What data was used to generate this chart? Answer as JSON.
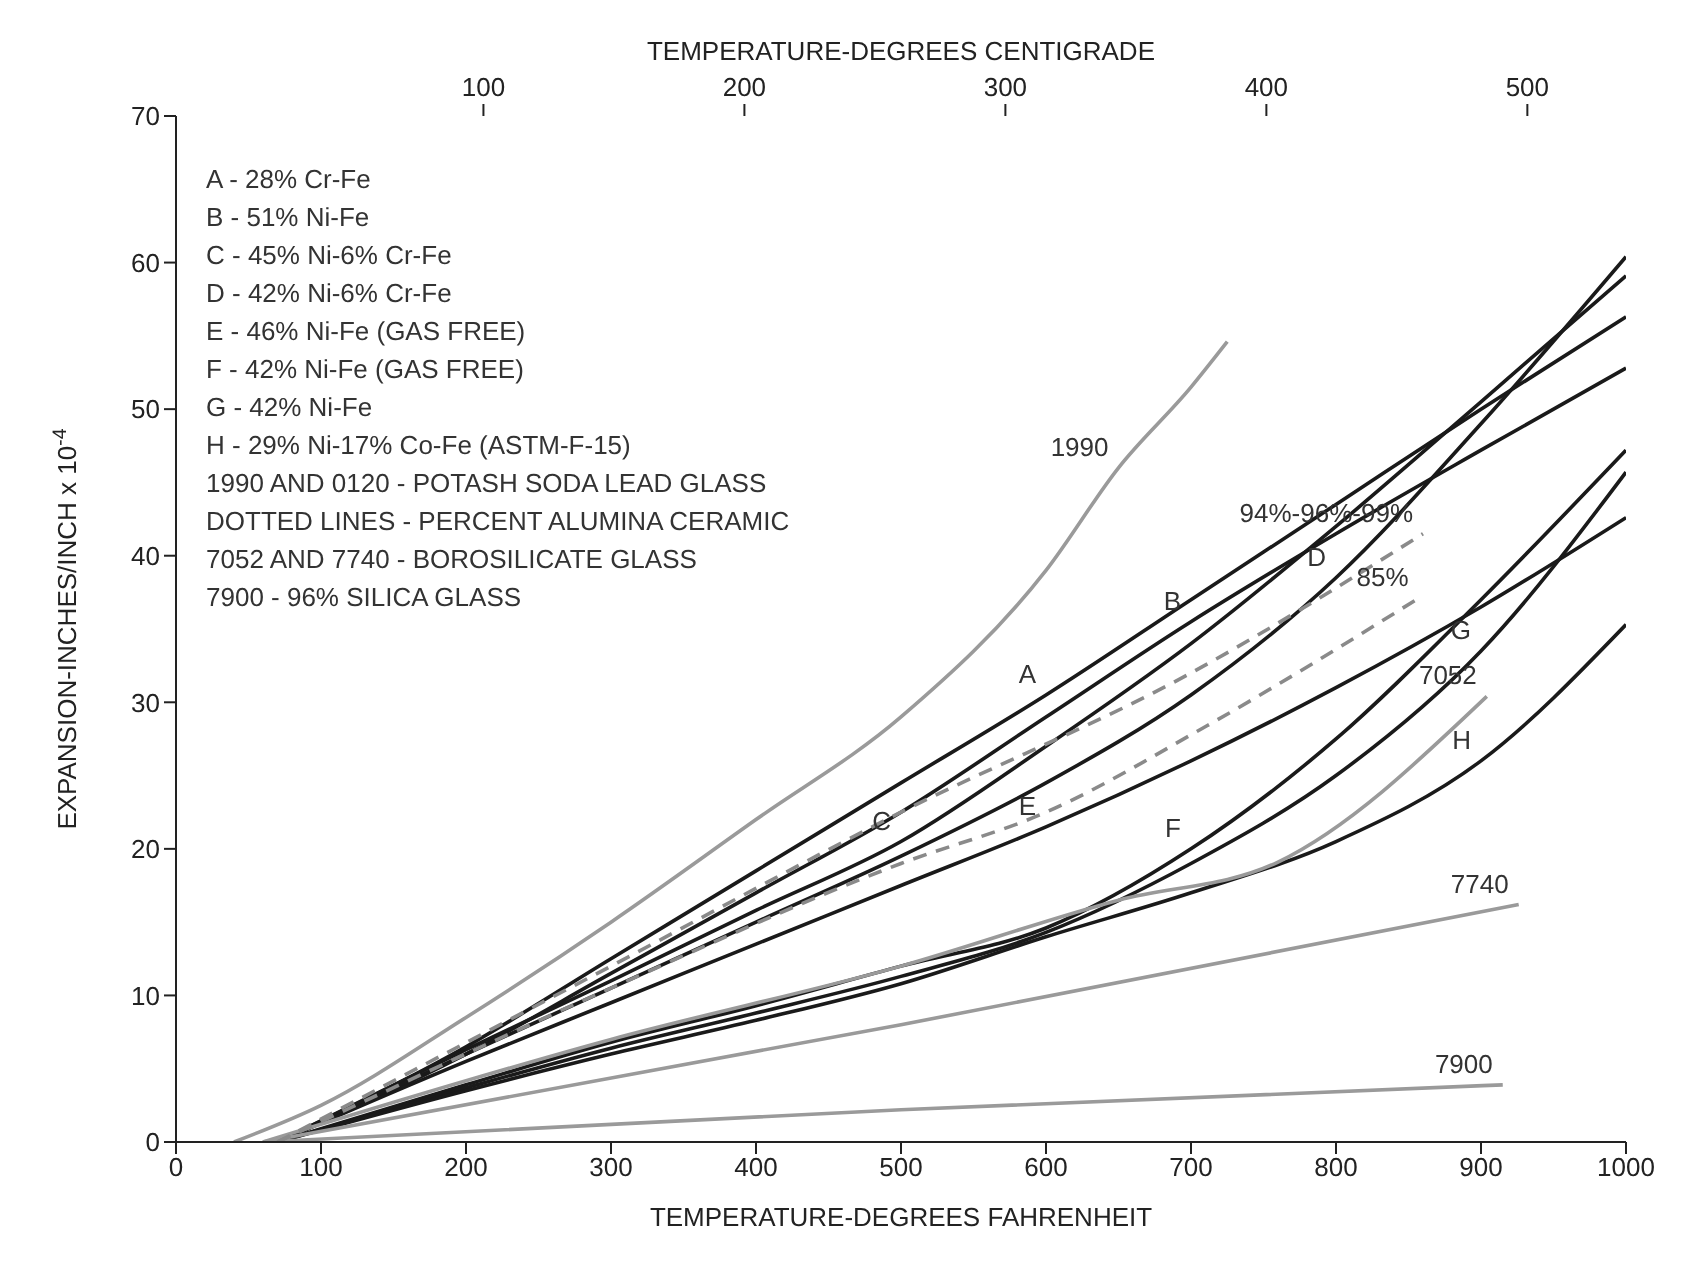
{
  "chart_data": {
    "type": "line",
    "xlabel": "TEMPERATURE-DEGREES FAHRENHEIT",
    "ylabel": "EXPANSION-INCHES/INCH x 10$^{-4}$",
    "x2label": "TEMPERATURE-DEGREES CENTIGRADE",
    "xlim": [
      0,
      1000
    ],
    "xticks": [
      0,
      100,
      200,
      300,
      400,
      500,
      600,
      700,
      800,
      900,
      1000
    ],
    "x2lim": [
      -17.8,
      537.8
    ],
    "x2ticks": [
      100,
      200,
      300,
      400,
      500
    ],
    "ylim": [
      0,
      70
    ],
    "yticks": [
      0,
      10,
      20,
      30,
      40,
      50,
      60,
      70
    ],
    "grid": false,
    "legend": false,
    "marker": "none",
    "line_style": "solid",
    "series": [
      {
        "color": "#1a1a1a",
        "x": [
          70,
          200,
          300,
          400,
          500,
          600,
          700,
          800,
          900,
          1000
        ],
        "values": [
          0,
          6.5,
          12.5,
          18.5,
          24.5,
          30.5,
          37,
          43.5,
          50,
          56.3
        ]
      },
      {
        "color": "#1a1a1a",
        "x": [
          70,
          200,
          300,
          400,
          500,
          600,
          700,
          800,
          900,
          1000
        ],
        "values": [
          0,
          6,
          11.5,
          17,
          22.5,
          29,
          35.5,
          41.5,
          47.2,
          52.8
        ]
      },
      {
        "color": "#1a1a1a",
        "x": [
          70,
          200,
          300,
          400,
          500,
          600,
          700,
          800,
          900,
          1000
        ],
        "values": [
          0,
          6.3,
          11,
          15.8,
          20.5,
          27,
          34,
          42,
          50.5,
          59.1
        ]
      },
      {
        "color": "#1a1a1a",
        "x": [
          70,
          200,
          300,
          400,
          500,
          600,
          700,
          800,
          900,
          1000
        ],
        "values": [
          0,
          6,
          10.5,
          15,
          19.5,
          24.5,
          30.5,
          38.5,
          49,
          60.4
        ]
      },
      {
        "color": "#1a1a1a",
        "x": [
          70,
          200,
          300,
          400,
          500,
          600,
          700,
          800,
          900,
          1000
        ],
        "values": [
          0,
          5.5,
          9.5,
          13.5,
          17.5,
          21.5,
          26,
          31,
          36.5,
          42.6
        ]
      },
      {
        "color": "#1a1a1a",
        "x": [
          70,
          200,
          300,
          400,
          500,
          600,
          700,
          800,
          900,
          1000
        ],
        "values": [
          0,
          3.9,
          6.8,
          9.3,
          12,
          14.6,
          20,
          27.5,
          37,
          47.2
        ]
      },
      {
        "color": "#1a1a1a",
        "x": [
          70,
          200,
          300,
          400,
          500,
          600,
          700,
          800,
          900,
          1000
        ],
        "values": [
          0,
          3.7,
          6.4,
          8.8,
          11.3,
          14.3,
          19,
          25,
          33.5,
          45.7
        ]
      },
      {
        "color": "#1a1a1a",
        "x": [
          70,
          200,
          300,
          400,
          500,
          600,
          700,
          800,
          900,
          1000
        ],
        "values": [
          0,
          3.5,
          6,
          8.3,
          10.8,
          14,
          17,
          20.5,
          26,
          35.3
        ]
      },
      {
        "color": "#9a9a9a",
        "x": [
          40,
          100,
          200,
          300,
          400,
          500,
          600,
          650,
          700,
          725
        ],
        "values": [
          0,
          2.5,
          8.5,
          15,
          22,
          29,
          39,
          46,
          51.5,
          54.6
        ]
      },
      {
        "color": "#9a9a9a",
        "x": [
          60,
          300,
          500,
          650,
          760,
          904
        ],
        "values": [
          0,
          7,
          12,
          16.5,
          19.1,
          30.4
        ]
      },
      {
        "color": "#9a9a9a",
        "x": [
          60,
          500,
          926
        ],
        "values": [
          0,
          8,
          16.2
        ]
      },
      {
        "color": "#9a9a9a",
        "x": [
          60,
          500,
          915
        ],
        "values": [
          0,
          2.2,
          3.9
        ]
      },
      {
        "color": "#8a8a8a",
        "line_style": "dashed",
        "x": [
          70,
          300,
          500,
          700,
          860
        ],
        "values": [
          0,
          12,
          22.5,
          32,
          41.5
        ]
      },
      {
        "color": "#8a8a8a",
        "line_style": "dashed",
        "x": [
          70,
          300,
          500,
          600,
          711,
          857
        ],
        "values": [
          0,
          10.5,
          19,
          22.5,
          28.4,
          37.1
        ]
      }
    ],
    "annotations": [
      "A - 28% Cr-Fe",
      "B - 51% Ni-Fe",
      "C - 45% Ni-6% Cr-Fe",
      "D - 42% Ni-6% Cr-Fe",
      "E - 46% Ni-Fe (GAS FREE)",
      "F - 42% Ni-Fe (GAS FREE)",
      "G - 42% Ni-Fe",
      "H - 29% Ni-17% Co-Fe (ASTM-F-15)",
      "1990 AND 0120 - POTASH SODA LEAD GLASS",
      "DOTTED LINES - PERCENT ALUMINA CERAMIC",
      "7052 AND 7740 - BOROSILICATE GLASS",
      "7900 - 96% SILICA GLASS",
      {
        "text": "A",
        "x": 600,
        "y": 30.5
      },
      {
        "text": "B",
        "x": 700,
        "y": 35.5
      },
      {
        "text": "C",
        "x": 500,
        "y": 20.5
      },
      {
        "text": "D",
        "x": 800,
        "y": 38.5
      },
      {
        "text": "E",
        "x": 600,
        "y": 21.5
      },
      {
        "text": "F",
        "x": 700,
        "y": 20
      },
      {
        "text": "G",
        "x": 900,
        "y": 33.5
      },
      {
        "text": "H",
        "x": 900,
        "y": 26
      },
      {
        "text": "1990",
        "x": 650,
        "y": 46
      },
      {
        "text": "7052",
        "x": 904,
        "y": 30.4
      },
      {
        "text": "7740",
        "x": 926,
        "y": 16.2
      },
      {
        "text": "7900",
        "x": 915,
        "y": 3.9
      },
      {
        "text": "94%-96%-99%",
        "x": 860,
        "y": 41.5
      },
      {
        "text": "85%",
        "x": 857,
        "y": 37.1
      }
    ]
  }
}
